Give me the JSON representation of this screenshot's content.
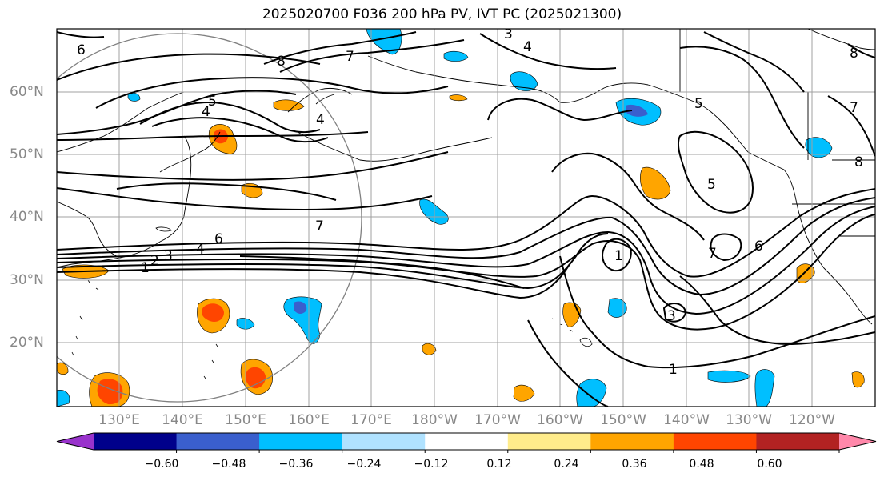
{
  "title": "2025020700 F036 200 hPa PV, IVT PC (2025021300)",
  "lon_labels": [
    "130°E",
    "140°E",
    "150°E",
    "160°E",
    "170°E",
    "180°W",
    "170°W",
    "160°W",
    "150°W",
    "140°W",
    "130°W",
    "120°W"
  ],
  "lat_labels": [
    "60°N",
    "50°N",
    "40°N",
    "30°N",
    "20°N"
  ],
  "contour_labels": [
    "6",
    "8",
    "7",
    "3",
    "4",
    "5",
    "4",
    "4",
    "7",
    "6",
    "4",
    "3",
    "2",
    "1",
    "1",
    "5",
    "7",
    "6",
    "3",
    "1",
    "8",
    "8",
    "7",
    "5"
  ],
  "colorbar": {
    "tick_labels": [
      "−0.60",
      "−0.48",
      "−0.36",
      "−0.24",
      "−0.12",
      "0.12",
      "0.24",
      "0.36",
      "0.48",
      "0.60"
    ],
    "colors": [
      "#9933cc",
      "#00008b",
      "#3a5fcd",
      "#00bfff",
      "#b0e2ff",
      "#ffffff",
      "#ffec8b",
      "#ffa500",
      "#ff4500",
      "#b22222",
      "#ff88aa"
    ]
  }
}
